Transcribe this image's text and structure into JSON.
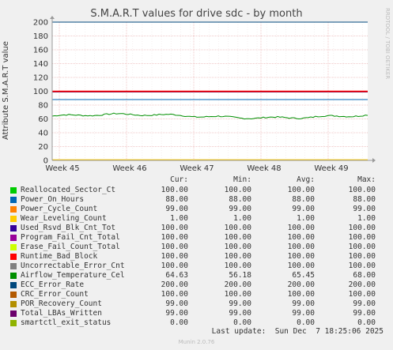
{
  "chart_data": {
    "type": "line",
    "title": "S.M.A.R.T values for drive sdc - by month",
    "ylabel": "Attribute S.M.A.R.T value",
    "ylim": [
      0,
      200
    ],
    "y_ticks": [
      "0",
      "20",
      "40",
      "60",
      "80",
      "100",
      "120",
      "140",
      "160",
      "180",
      "200"
    ],
    "x_ticks": [
      "Week 45",
      "Week 46",
      "Week 47",
      "Week 48",
      "Week 49"
    ],
    "grid": true,
    "legend_headers": {
      "cur": "Cur:",
      "min": "Min:",
      "avg": "Avg:",
      "max": "Max:"
    },
    "series": [
      {
        "name": "Reallocated_Sector_Ct",
        "color": "#00cc00",
        "cur": "100.00",
        "min": "100.00",
        "avg": "100.00",
        "max": "100.00"
      },
      {
        "name": "Power_On_Hours",
        "color": "#0066b3",
        "cur": "88.00",
        "min": "88.00",
        "avg": "88.00",
        "max": "88.00"
      },
      {
        "name": "Power_Cycle_Count",
        "color": "#ff8000",
        "cur": "99.00",
        "min": "99.00",
        "avg": "99.00",
        "max": "99.00"
      },
      {
        "name": "Wear_Leveling_Count",
        "color": "#ffcc00",
        "cur": "1.00",
        "min": "1.00",
        "avg": "1.00",
        "max": "1.00"
      },
      {
        "name": "Used_Rsvd_Blk_Cnt_Tot",
        "color": "#330099",
        "cur": "100.00",
        "min": "100.00",
        "avg": "100.00",
        "max": "100.00"
      },
      {
        "name": "Program_Fail_Cnt_Total",
        "color": "#990099",
        "cur": "100.00",
        "min": "100.00",
        "avg": "100.00",
        "max": "100.00"
      },
      {
        "name": "Erase_Fail_Count_Total",
        "color": "#ccff00",
        "cur": "100.00",
        "min": "100.00",
        "avg": "100.00",
        "max": "100.00"
      },
      {
        "name": "Runtime_Bad_Block",
        "color": "#ff0000",
        "cur": "100.00",
        "min": "100.00",
        "avg": "100.00",
        "max": "100.00"
      },
      {
        "name": "Uncorrectable_Error_Cnt",
        "color": "#808080",
        "cur": "100.00",
        "min": "100.00",
        "avg": "100.00",
        "max": "100.00"
      },
      {
        "name": "Airflow_Temperature_Cel",
        "color": "#008f00",
        "cur": "64.63",
        "min": "56.18",
        "avg": "65.45",
        "max": "68.00"
      },
      {
        "name": "ECC_Error_Rate",
        "color": "#00487d",
        "cur": "200.00",
        "min": "200.00",
        "avg": "200.00",
        "max": "200.00"
      },
      {
        "name": "CRC_Error_Count",
        "color": "#b35a00",
        "cur": "100.00",
        "min": "100.00",
        "avg": "100.00",
        "max": "100.00"
      },
      {
        "name": "POR_Recovery_Count",
        "color": "#b38f00",
        "cur": "99.00",
        "min": "99.00",
        "avg": "99.00",
        "max": "99.00"
      },
      {
        "name": "Total_LBAs_Written",
        "color": "#6b006b",
        "cur": "99.00",
        "min": "99.00",
        "avg": "99.00",
        "max": "99.00"
      },
      {
        "name": "smartctl_exit_status",
        "color": "#8fb300",
        "cur": "0.00",
        "min": "0.00",
        "avg": "0.00",
        "max": "0.00"
      }
    ]
  },
  "footer": {
    "last_update": "Last update:  Sun Dec  7 18:25:06 2025",
    "version": "Munin 2.0.76",
    "side_label": "RRDTOOL / TOBI OETIKER"
  }
}
